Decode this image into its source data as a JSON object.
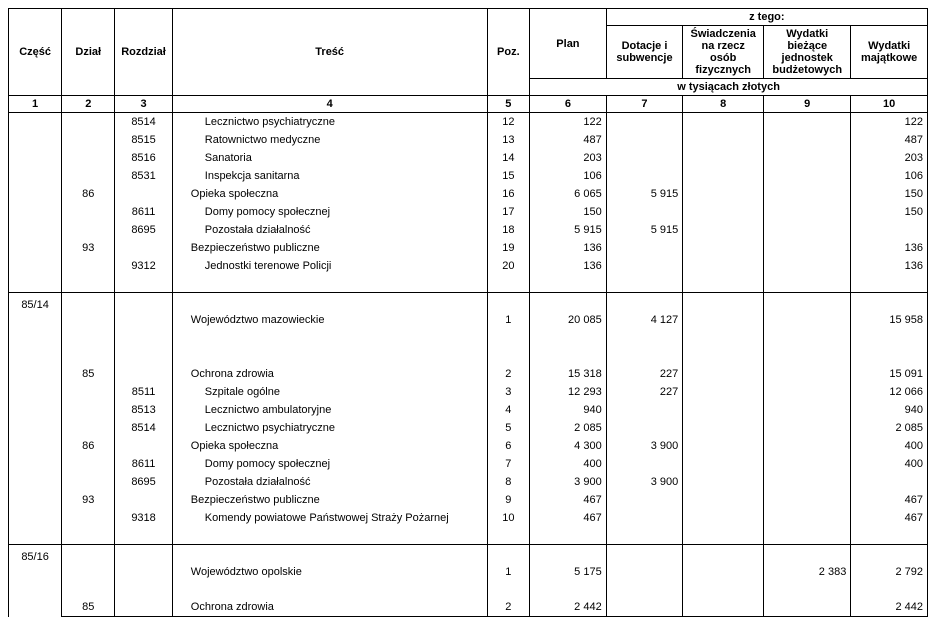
{
  "headers": {
    "czesc": "Część",
    "dzial": "Dział",
    "rozdzial": "Rozdział",
    "tresc": "Treść",
    "poz": "Poz.",
    "plan": "Plan",
    "ztego": "z tego:",
    "c7": "Dotacje i subwencje",
    "c8": "Świadczenia na rzecz osób fizycznych",
    "c9": "Wydatki bieżące jednostek budżetowych",
    "c10": "Wydatki majątkowe",
    "unit": "w tysiącach złotych"
  },
  "colnums": {
    "n1": "1",
    "n2": "2",
    "n3": "3",
    "n4": "4",
    "n5": "5",
    "n6": "6",
    "n7": "7",
    "n8": "8",
    "n9": "9",
    "n10": "10"
  },
  "sections": [
    {
      "czesc": "",
      "rows": [
        {
          "dzial": "",
          "rozdzial": "8514",
          "tresc": "Lecznictwo psychiatryczne",
          "indent": 2,
          "poz": "12",
          "plan": "122",
          "c7": "",
          "c8": "",
          "c9": "",
          "c10": "122"
        },
        {
          "dzial": "",
          "rozdzial": "8515",
          "tresc": "Ratownictwo medyczne",
          "indent": 2,
          "poz": "13",
          "plan": "487",
          "c7": "",
          "c8": "",
          "c9": "",
          "c10": "487"
        },
        {
          "dzial": "",
          "rozdzial": "8516",
          "tresc": "Sanatoria",
          "indent": 2,
          "poz": "14",
          "plan": "203",
          "c7": "",
          "c8": "",
          "c9": "",
          "c10": "203"
        },
        {
          "dzial": "",
          "rozdzial": "8531",
          "tresc": "Inspekcja sanitarna",
          "indent": 2,
          "poz": "15",
          "plan": "106",
          "c7": "",
          "c8": "",
          "c9": "",
          "c10": "106"
        },
        {
          "dzial": "86",
          "rozdzial": "",
          "tresc": "Opieka społeczna",
          "indent": 1,
          "poz": "16",
          "plan": "6 065",
          "c7": "5 915",
          "c8": "",
          "c9": "",
          "c10": "150"
        },
        {
          "dzial": "",
          "rozdzial": "8611",
          "tresc": "Domy pomocy społecznej",
          "indent": 2,
          "poz": "17",
          "plan": "150",
          "c7": "",
          "c8": "",
          "c9": "",
          "c10": "150"
        },
        {
          "dzial": "",
          "rozdzial": "8695",
          "tresc": "Pozostała działalność",
          "indent": 2,
          "poz": "18",
          "plan": "5 915",
          "c7": "5 915",
          "c8": "",
          "c9": "",
          "c10": ""
        },
        {
          "dzial": "93",
          "rozdzial": "",
          "tresc": "Bezpieczeństwo publiczne",
          "indent": 1,
          "poz": "19",
          "plan": "136",
          "c7": "",
          "c8": "",
          "c9": "",
          "c10": "136"
        },
        {
          "dzial": "",
          "rozdzial": "9312",
          "tresc": "Jednostki terenowe Policji",
          "indent": 2,
          "poz": "20",
          "plan": "136",
          "c7": "",
          "c8": "",
          "c9": "",
          "c10": "136"
        }
      ],
      "trailingSpacers": 1
    },
    {
      "czesc": "85/14",
      "leadingSpacers": 1,
      "rows": [
        {
          "dzial": "",
          "rozdzial": "",
          "tresc": "Województwo mazowieckie",
          "indent": 1,
          "poz": "1",
          "plan": "20 085",
          "c7": "4 127",
          "c8": "",
          "c9": "",
          "c10": "15 958"
        },
        {
          "spacer": true
        },
        {
          "spacer": true
        },
        {
          "dzial": "85",
          "rozdzial": "",
          "tresc": "Ochrona zdrowia",
          "indent": 1,
          "poz": "2",
          "plan": "15 318",
          "c7": "227",
          "c8": "",
          "c9": "",
          "c10": "15 091"
        },
        {
          "dzial": "",
          "rozdzial": "8511",
          "tresc": "Szpitale ogólne",
          "indent": 2,
          "poz": "3",
          "plan": "12 293",
          "c7": "227",
          "c8": "",
          "c9": "",
          "c10": "12 066"
        },
        {
          "dzial": "",
          "rozdzial": "8513",
          "tresc": "Lecznictwo ambulatoryjne",
          "indent": 2,
          "poz": "4",
          "plan": "940",
          "c7": "",
          "c8": "",
          "c9": "",
          "c10": "940"
        },
        {
          "dzial": "",
          "rozdzial": "8514",
          "tresc": "Lecznictwo psychiatryczne",
          "indent": 2,
          "poz": "5",
          "plan": "2 085",
          "c7": "",
          "c8": "",
          "c9": "",
          "c10": "2 085"
        },
        {
          "dzial": "86",
          "rozdzial": "",
          "tresc": "Opieka społeczna",
          "indent": 1,
          "poz": "6",
          "plan": "4 300",
          "c7": "3 900",
          "c8": "",
          "c9": "",
          "c10": "400"
        },
        {
          "dzial": "",
          "rozdzial": "8611",
          "tresc": "Domy pomocy społecznej",
          "indent": 2,
          "poz": "7",
          "plan": "400",
          "c7": "",
          "c8": "",
          "c9": "",
          "c10": "400"
        },
        {
          "dzial": "",
          "rozdzial": "8695",
          "tresc": "Pozostała działalność",
          "indent": 2,
          "poz": "8",
          "plan": "3 900",
          "c7": "3 900",
          "c8": "",
          "c9": "",
          "c10": ""
        },
        {
          "dzial": "93",
          "rozdzial": "",
          "tresc": "Bezpieczeństwo publiczne",
          "indent": 1,
          "poz": "9",
          "plan": "467",
          "c7": "",
          "c8": "",
          "c9": "",
          "c10": "467"
        },
        {
          "dzial": "",
          "rozdzial": "9318",
          "tresc": "Komendy powiatowe Państwowej Straży Pożarnej",
          "indent": 2,
          "poz": "10",
          "plan": "467",
          "c7": "",
          "c8": "",
          "c9": "",
          "c10": "467"
        }
      ],
      "trailingSpacers": 1
    },
    {
      "czesc": "85/16",
      "leadingSpacers": 1,
      "rows": [
        {
          "dzial": "",
          "rozdzial": "",
          "tresc": "Województwo opolskie",
          "indent": 1,
          "poz": "1",
          "plan": "5 175",
          "c7": "",
          "c8": "",
          "c9": "2 383",
          "c10": "2 792"
        },
        {
          "spacer": true
        },
        {
          "dzial": "85",
          "rozdzial": "",
          "tresc": "Ochrona zdrowia",
          "indent": 1,
          "poz": "2",
          "plan": "2 442",
          "c7": "",
          "c8": "",
          "c9": "",
          "c10": "2 442"
        }
      ]
    }
  ]
}
